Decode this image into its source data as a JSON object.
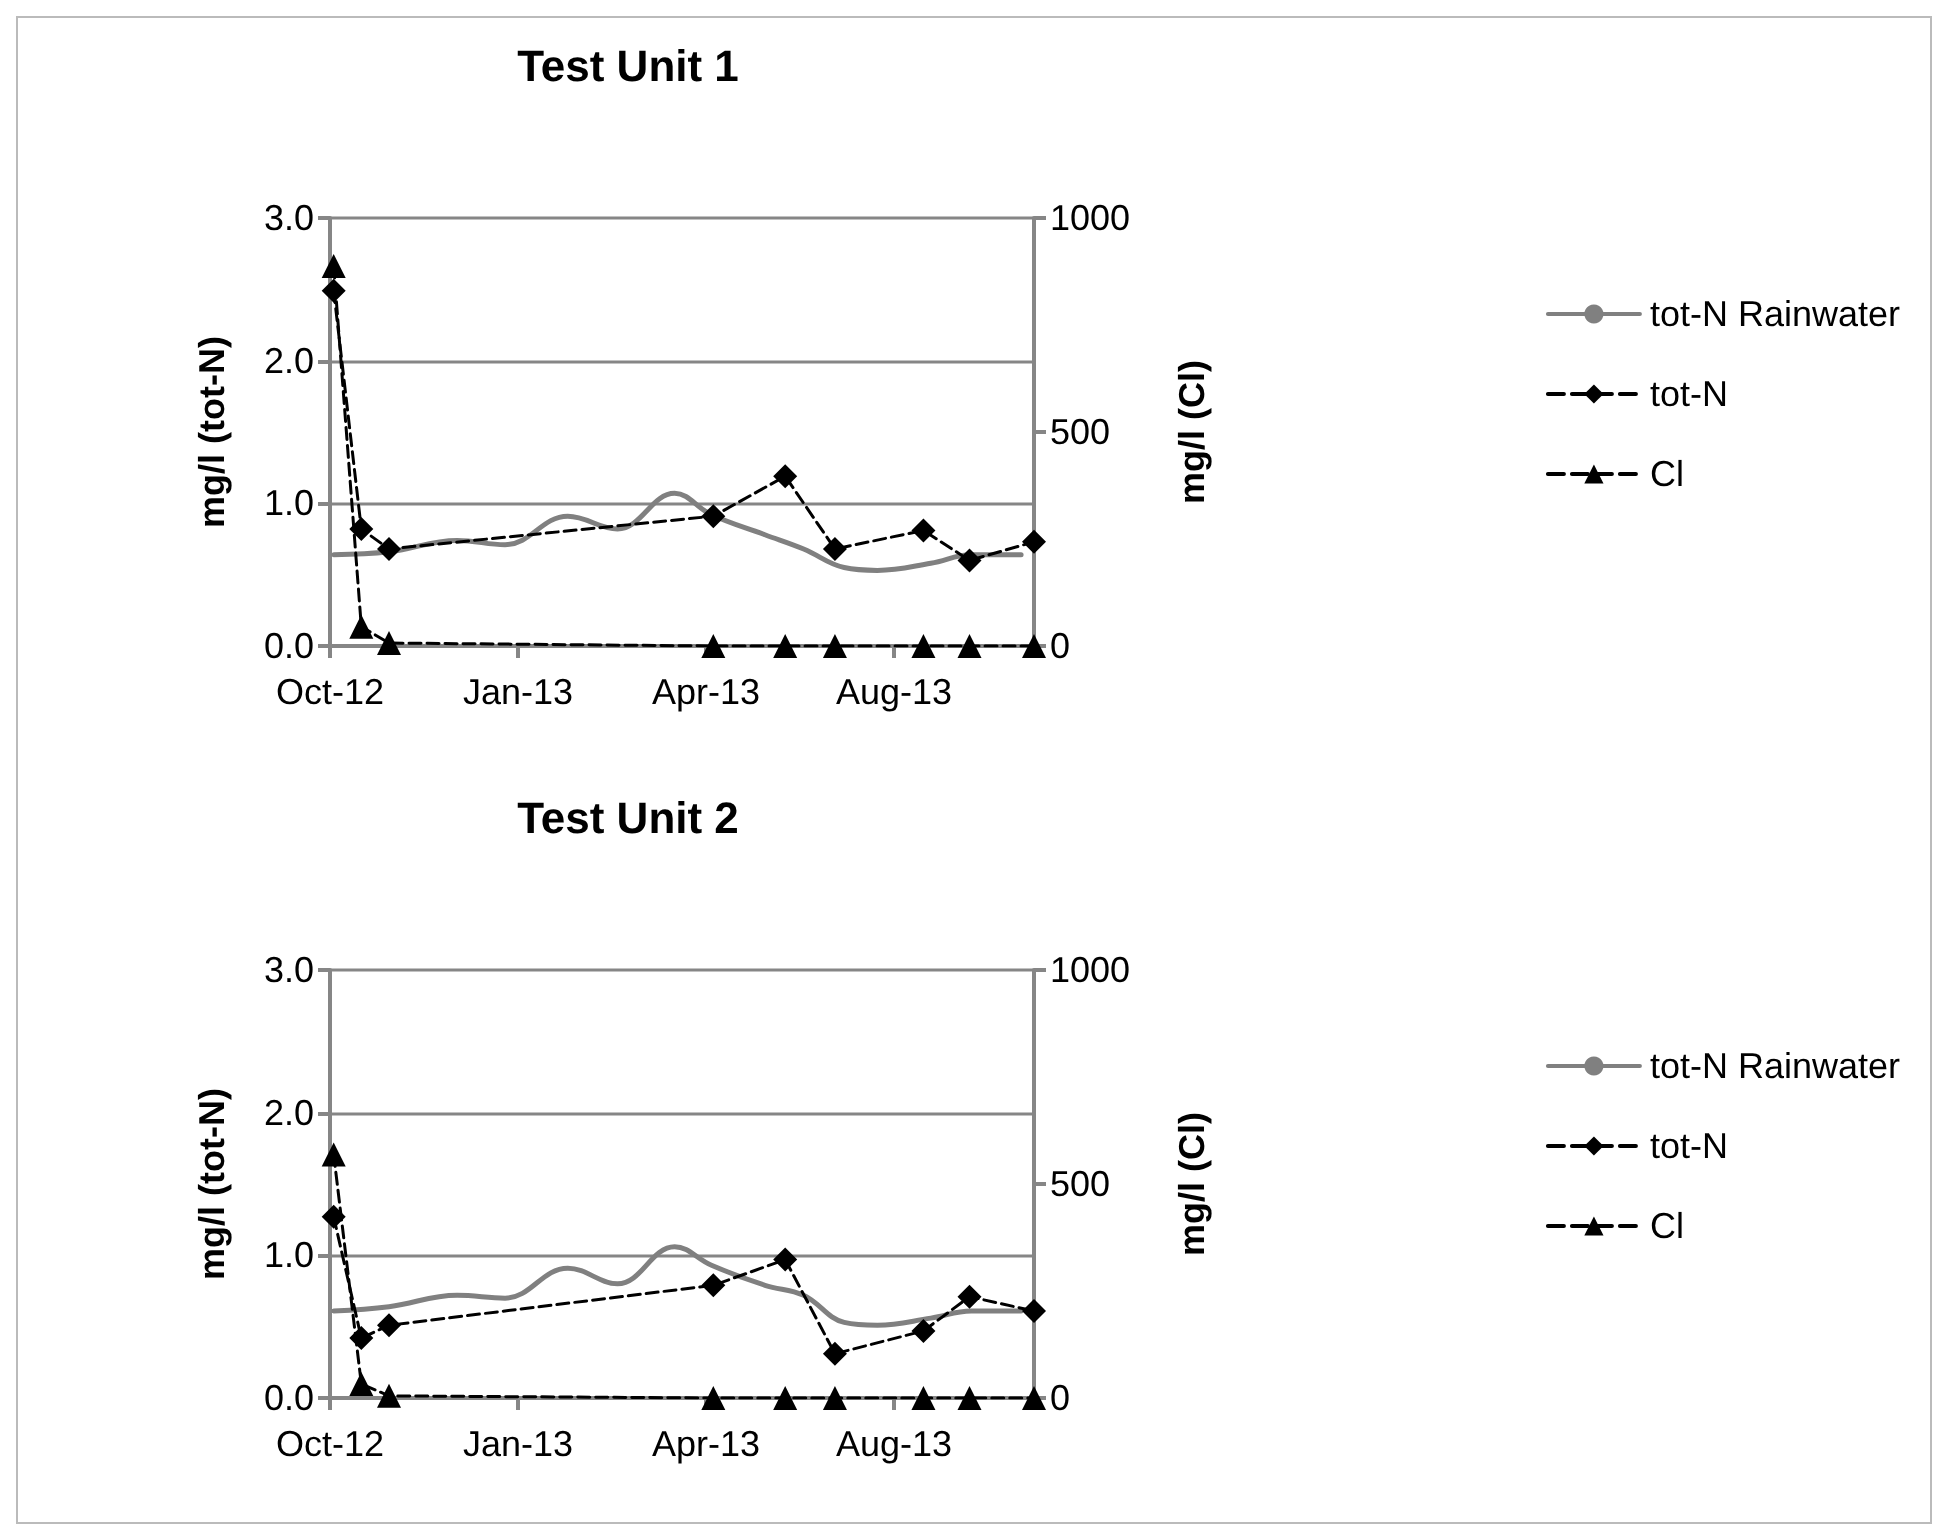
{
  "chart_data": [
    {
      "type": "line",
      "title": "Test Unit 1",
      "ylabel": "mg/l (tot-N)",
      "y2label": "mg/l (Cl)",
      "xlim": [
        "2012-10-01",
        "2013-10-18"
      ],
      "xticks": [
        {
          "value": "2012-10-01",
          "label": "Oct-12"
        },
        {
          "value": "2013-01-11",
          "label": "Jan-13"
        },
        {
          "value": "2013-04-23",
          "label": "Apr-13"
        },
        {
          "value": "2013-08-03",
          "label": "Aug-13"
        }
      ],
      "ylim": [
        0,
        3
      ],
      "yticks": [
        {
          "value": 0,
          "label": "0.0"
        },
        {
          "value": 1,
          "label": "1.0"
        },
        {
          "value": 2,
          "label": "2.0"
        },
        {
          "value": 3,
          "label": "3.0"
        }
      ],
      "y2lim": [
        0,
        1000
      ],
      "y2ticks": [
        0,
        500,
        1000
      ],
      "grid": "y",
      "legend": "right",
      "series": [
        {
          "name": "tot-N Rainwater",
          "color": "#808080",
          "marker": "none",
          "line_style": "solid",
          "x": [
            "2012-10-03",
            "2012-11-02",
            "2012-12-09",
            "2013-01-04",
            "2013-02-07",
            "2013-03-06",
            "2013-04-06",
            "2013-04-26",
            "2013-05-25",
            "2013-06-15",
            "2013-07-07",
            "2013-07-25",
            "2013-08-23",
            "2013-09-14",
            "2013-10-11"
          ],
          "values": [
            0.64,
            0.66,
            0.74,
            0.71,
            0.91,
            0.82,
            1.07,
            0.92,
            0.78,
            0.68,
            0.55,
            0.53,
            0.58,
            0.64,
            0.64
          ]
        },
        {
          "name": "tot-N",
          "color": "#000000",
          "marker": "diamond",
          "line_style": "dashed",
          "x": [
            "2012-10-03",
            "2012-10-18",
            "2012-11-02",
            "2013-04-27",
            "2013-06-05",
            "2013-07-02",
            "2013-08-19",
            "2013-09-13",
            "2013-10-18"
          ],
          "values": [
            2.49,
            0.82,
            0.68,
            0.91,
            1.19,
            0.68,
            0.81,
            0.6,
            0.73
          ]
        },
        {
          "name": "Cl",
          "color": "#000000",
          "marker": "triangle",
          "line_style": "dashed",
          "axis": "y2",
          "x": [
            "2012-10-03",
            "2012-10-18",
            "2012-11-02",
            "2013-04-27",
            "2013-06-05",
            "2013-07-02",
            "2013-08-19",
            "2013-09-13",
            "2013-10-18"
          ],
          "values": [
            888,
            45,
            7,
            0,
            0,
            0,
            0,
            0,
            0
          ]
        }
      ]
    },
    {
      "type": "line",
      "title": "Test Unit 2",
      "ylabel": "mg/l (tot-N)",
      "y2label": "mg/l (Cl)",
      "xlim": [
        "2012-10-01",
        "2013-10-18"
      ],
      "xticks": [
        {
          "value": "2012-10-01",
          "label": "Oct-12"
        },
        {
          "value": "2013-01-11",
          "label": "Jan-13"
        },
        {
          "value": "2013-04-23",
          "label": "Apr-13"
        },
        {
          "value": "2013-08-03",
          "label": "Aug-13"
        }
      ],
      "ylim": [
        0,
        3
      ],
      "yticks": [
        {
          "value": 0,
          "label": "0.0"
        },
        {
          "value": 1,
          "label": "1.0"
        },
        {
          "value": 2,
          "label": "2.0"
        },
        {
          "value": 3,
          "label": "3.0"
        }
      ],
      "y2lim": [
        0,
        1000
      ],
      "y2ticks": [
        0,
        500,
        1000
      ],
      "grid": "y",
      "legend": "right",
      "series": [
        {
          "name": "tot-N Rainwater",
          "color": "#808080",
          "marker": "none",
          "line_style": "solid",
          "x": [
            "2012-10-03",
            "2012-11-02",
            "2012-12-09",
            "2013-01-04",
            "2013-02-07",
            "2013-03-06",
            "2013-04-06",
            "2013-04-26",
            "2013-05-25",
            "2013-06-15",
            "2013-07-07",
            "2013-07-25",
            "2013-08-23",
            "2013-09-14",
            "2013-10-11"
          ],
          "values": [
            0.61,
            0.64,
            0.72,
            0.7,
            0.91,
            0.8,
            1.06,
            0.93,
            0.79,
            0.72,
            0.53,
            0.51,
            0.56,
            0.61,
            0.61
          ]
        },
        {
          "name": "tot-N",
          "color": "#000000",
          "marker": "diamond",
          "line_style": "dashed",
          "x": [
            "2012-10-03",
            "2012-10-18",
            "2012-11-02",
            "2013-04-27",
            "2013-06-05",
            "2013-07-02",
            "2013-08-19",
            "2013-09-13",
            "2013-10-18"
          ],
          "values": [
            1.27,
            0.42,
            0.51,
            0.79,
            0.97,
            0.31,
            0.47,
            0.71,
            0.61
          ]
        },
        {
          "name": "Cl",
          "color": "#000000",
          "marker": "triangle",
          "line_style": "dashed",
          "axis": "y2",
          "x": [
            "2012-10-03",
            "2012-10-18",
            "2012-11-02",
            "2013-04-27",
            "2013-06-05",
            "2013-07-02",
            "2013-08-19",
            "2013-09-13",
            "2013-10-18"
          ],
          "values": [
            569,
            33,
            5,
            0,
            0,
            0,
            0,
            0,
            0
          ]
        }
      ]
    }
  ]
}
